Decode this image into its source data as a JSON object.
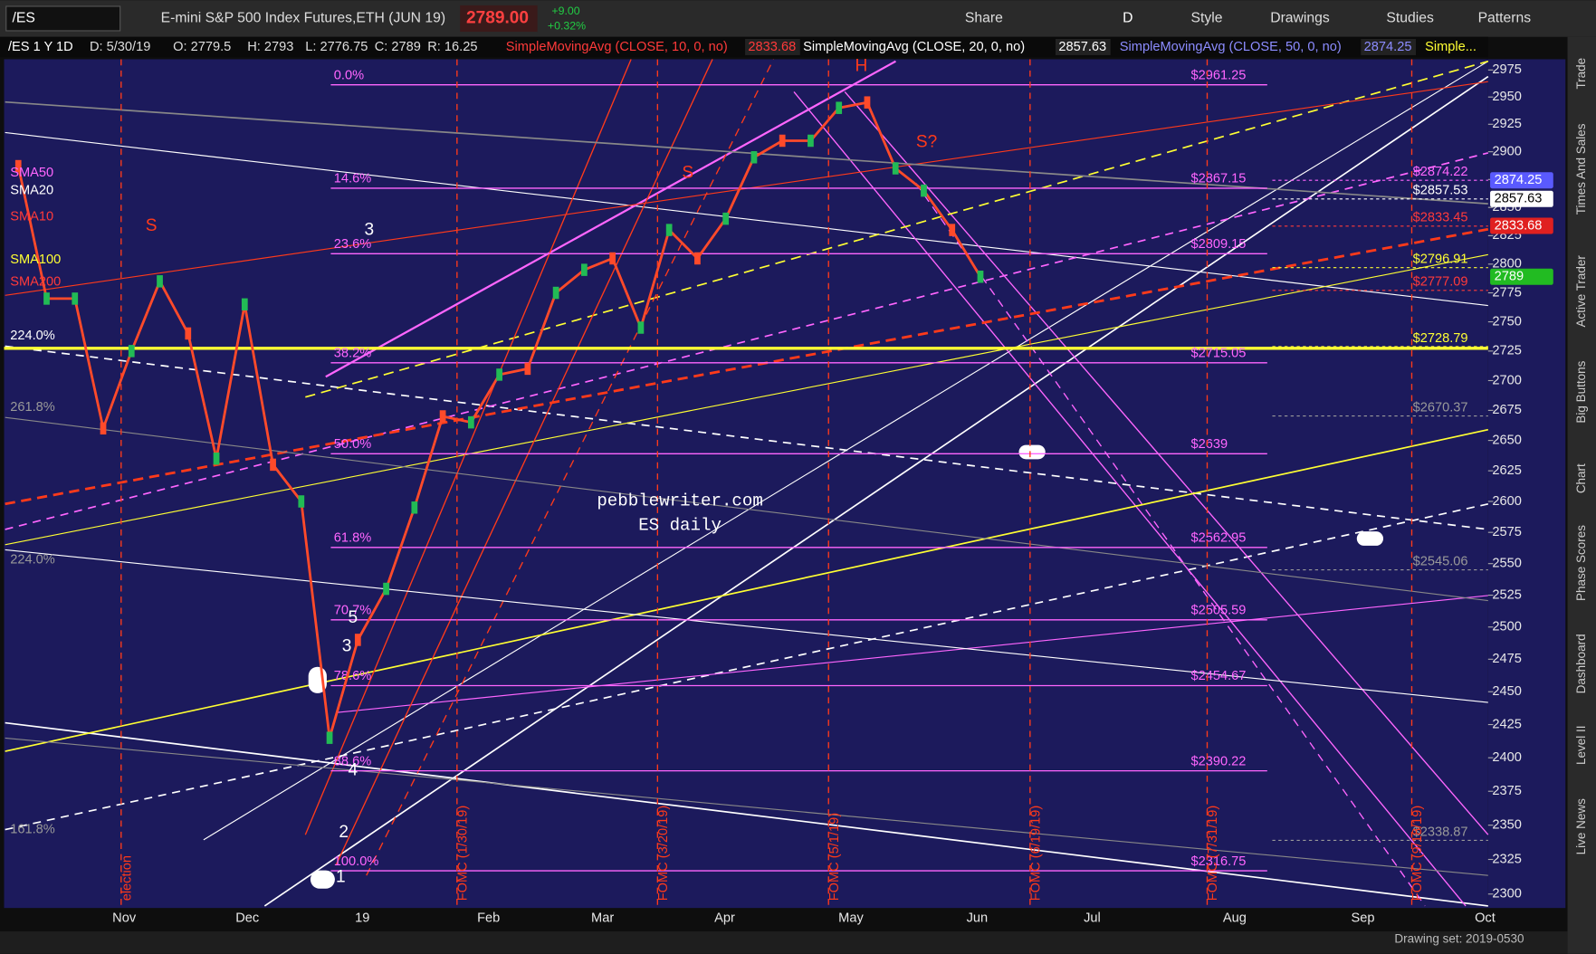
{
  "toolbar": {
    "symbol": "/ES",
    "description": "E-mini S&P 500 Index Futures,ETH (JUN 19)",
    "last": "2789.00",
    "change": "+9.00",
    "change_pct": "+0.32%",
    "interval": "D",
    "buttons": [
      "Share",
      "Style",
      "Drawings",
      "Studies",
      "Patterns"
    ]
  },
  "legend": {
    "symbol": "/ES 1 Y 1D",
    "fields": [
      "D: 5/30/19",
      "O: 2779.5",
      "H: 2793",
      "L: 2776.75",
      "C: 2789",
      "R: 16.25"
    ],
    "studies": [
      {
        "text": "SimpleMovingAvg (CLOSE, 10, 0, no)",
        "value": "2833.68",
        "color": "#ff3a3a"
      },
      {
        "text": "SimpleMovingAvg (CLOSE, 20, 0, no)",
        "value": "2857.63",
        "color": "#ffffff"
      },
      {
        "text": "SimpleMovingAvg (CLOSE, 50, 0, no)",
        "value": "2874.25",
        "color": "#8c8cff"
      }
    ],
    "more": "Simple..."
  },
  "price_axis": {
    "ylim": [
      2290,
      2985
    ],
    "log_scale": true,
    "ticks": [
      2300,
      2325,
      2350,
      2375,
      2400,
      2425,
      2450,
      2475,
      2500,
      2525,
      2550,
      2575,
      2600,
      2625,
      2650,
      2675,
      2700,
      2725,
      2750,
      2775,
      2800,
      2825,
      2850,
      2875,
      2900,
      2925,
      2950,
      2975
    ]
  },
  "time_axis": {
    "labels": [
      "Nov",
      "Dec",
      "19",
      "Feb",
      "Mar",
      "Apr",
      "May",
      "Jun",
      "Jul",
      "Aug",
      "Sep",
      "Oct"
    ]
  },
  "price_series": {
    "color": "#ff4a2a",
    "weekly_close": [
      2887,
      2770,
      2770,
      2660,
      2725,
      2785,
      2740,
      2635,
      2765,
      2630,
      2600,
      2415,
      2490,
      2530,
      2595,
      2670,
      2665,
      2705,
      2710,
      2775,
      2795,
      2805,
      2745,
      2830,
      2805,
      2840,
      2895,
      2910,
      2910,
      2940,
      2945,
      2885,
      2865,
      2830,
      2789
    ]
  },
  "badges": [
    {
      "value": 2874.25,
      "color": "#5a5aff"
    },
    {
      "value": 2857.63,
      "color": "#ffffff"
    },
    {
      "value": 2833.68,
      "color": "#e02020"
    },
    {
      "value": 2789,
      "color": "#22bb22"
    }
  ],
  "right_levels": [
    {
      "value": 2874.22,
      "label": "$2874.22",
      "color": "#ff66ff"
    },
    {
      "value": 2857.53,
      "label": "$2857.53",
      "color": "#ffffff"
    },
    {
      "value": 2833.45,
      "label": "$2833.45",
      "color": "#ff3a3a"
    },
    {
      "value": 2796.91,
      "label": "$2796.91",
      "color": "#ffff33"
    },
    {
      "value": 2777.09,
      "label": "$2777.09",
      "color": "#ff3a3a"
    },
    {
      "value": 2728.79,
      "label": "$2728.79",
      "color": "#ffff33"
    },
    {
      "value": 2670.37,
      "label": "$2670.37",
      "color": "#999999"
    },
    {
      "value": 2545.06,
      "label": "$2545.06",
      "color": "#999999"
    },
    {
      "value": 2338.87,
      "label": "$2338.87",
      "color": "#999999"
    }
  ],
  "fib_levels": [
    {
      "pct": "0.0%",
      "price": {
        "value": 2961.25,
        "label": "$2961.25"
      }
    },
    {
      "pct": "14.6%",
      "price": {
        "value": 2867.15,
        "label": "$2867.15"
      }
    },
    {
      "pct": "23.6%",
      "price": {
        "value": 2809.15,
        "label": "$2809.15"
      }
    },
    {
      "pct": "38.2%",
      "price": {
        "value": 2715.05,
        "label": "$2715.05"
      }
    },
    {
      "pct": "50.0%",
      "price": {
        "value": 2639,
        "label": "$2639"
      }
    },
    {
      "pct": "61.8%",
      "price": {
        "value": 2562.95,
        "label": "$2562.95"
      }
    },
    {
      "pct": "70.7%",
      "price": {
        "value": 2505.59,
        "label": "$2505.59"
      }
    },
    {
      "pct": "78.6%",
      "price": {
        "value": 2454.67,
        "label": "$2454.67"
      }
    },
    {
      "pct": "88.6%",
      "price": {
        "value": 2390.22,
        "label": "$2390.22"
      }
    },
    {
      "pct": "100.0%",
      "price": {
        "value": 2316.75,
        "label": "$2316.75"
      }
    }
  ],
  "sma_tags": [
    {
      "text": "SMA50",
      "color": "#ff66ff"
    },
    {
      "text": "SMA20",
      "color": "#ffffff"
    },
    {
      "text": "SMA10",
      "color": "#ff3a3a"
    },
    {
      "text": "SMA100",
      "color": "#ffff33"
    },
    {
      "text": "SMA200",
      "color": "#ff3a3a"
    }
  ],
  "left_extensions": [
    "224.0%",
    "261.8%",
    "224.0%",
    "161.8%"
  ],
  "event_labels": [
    "election",
    "FOMC (1/30/19)",
    "FOMC (3/20/19)",
    "FOMC (5/1/19)",
    "FOMC (6/19/19)",
    "FOMC (7/31/19)",
    "FOMC (9/18/19)"
  ],
  "annotations": [
    "H",
    "S",
    "S",
    "S?",
    "3",
    "5",
    "3",
    "4",
    "2",
    "1"
  ],
  "watermark": [
    "pebblewriter.com",
    "ES daily"
  ],
  "side_tabs": [
    "Trade",
    "Times And Sales",
    "Active Trader",
    "Big Buttons",
    "Chart",
    "Phase Scores",
    "Dashboard",
    "Level II",
    "Live News"
  ],
  "footer": "Drawing set: 2019-0530"
}
